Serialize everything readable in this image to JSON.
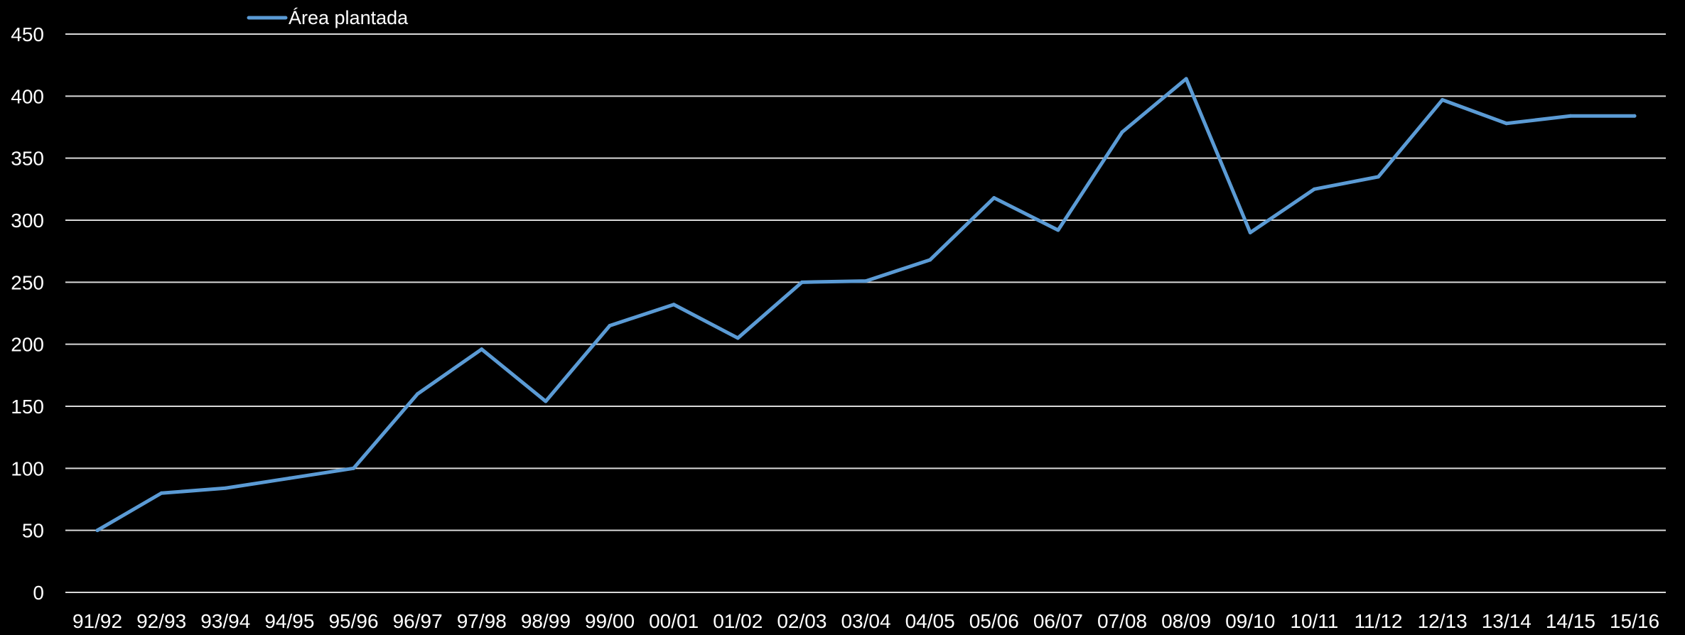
{
  "chart_data": {
    "type": "line",
    "categories": [
      "91/92",
      "92/93",
      "93/94",
      "94/95",
      "95/96",
      "96/97",
      "97/98",
      "98/99",
      "99/00",
      "00/01",
      "01/02",
      "02/03",
      "03/04",
      "04/05",
      "05/06",
      "06/07",
      "07/08",
      "08/09",
      "09/10",
      "10/11",
      "11/12",
      "12/13",
      "13/14",
      "14/15",
      "15/16"
    ],
    "series": [
      {
        "name": "Área plantada",
        "color": "#5b9bd5",
        "values": [
          50,
          80,
          84,
          92,
          100,
          160,
          196,
          154,
          215,
          232,
          205,
          250,
          251,
          268,
          318,
          292,
          371,
          414,
          290,
          325,
          335,
          397,
          378,
          384,
          384
        ]
      }
    ],
    "ylim": [
      0,
      450
    ],
    "yticks": [
      0,
      50,
      100,
      150,
      200,
      250,
      300,
      350,
      400,
      450
    ],
    "grid": true,
    "legend_position": "top-left",
    "title": "",
    "xlabel": "",
    "ylabel": ""
  },
  "colors": {
    "background": "#000000",
    "grid": "#d9d9d9",
    "text": "#ffffff"
  }
}
